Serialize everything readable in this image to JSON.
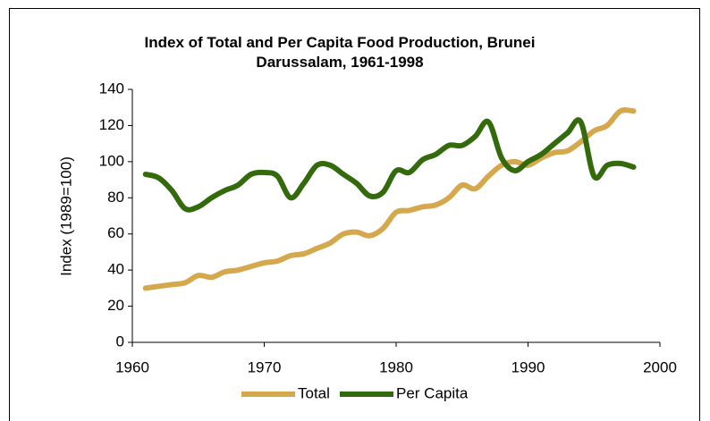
{
  "chart_data": {
    "type": "line",
    "title": "Index of Total and Per Capita Food Production, Brunei Darussalam, 1961-1998",
    "ylabel": "Index (1989=100)",
    "x": [
      1961,
      1962,
      1963,
      1964,
      1965,
      1966,
      1967,
      1968,
      1969,
      1970,
      1971,
      1972,
      1973,
      1974,
      1975,
      1976,
      1977,
      1978,
      1979,
      1980,
      1981,
      1982,
      1983,
      1984,
      1985,
      1986,
      1987,
      1988,
      1989,
      1990,
      1991,
      1992,
      1993,
      1994,
      1995,
      1996,
      1997,
      1998
    ],
    "series": [
      {
        "name": "Total",
        "color": "#d6a84e",
        "values": [
          30,
          31,
          32,
          33,
          37,
          36,
          39,
          40,
          42,
          44,
          45,
          48,
          49,
          52,
          55,
          60,
          61,
          59,
          63,
          72,
          73,
          75,
          76,
          80,
          87,
          85,
          92,
          98,
          100,
          98,
          102,
          105,
          106,
          111,
          117,
          120,
          128,
          128
        ]
      },
      {
        "name": "Per Capita",
        "color": "#336a0c",
        "values": [
          93,
          91,
          84,
          74,
          75,
          80,
          84,
          87,
          93,
          94,
          92,
          80,
          88,
          98,
          98,
          93,
          88,
          81,
          83,
          95,
          94,
          101,
          104,
          109,
          109,
          114,
          122,
          102,
          95,
          100,
          104,
          110,
          116,
          122,
          92,
          98,
          99,
          97
        ]
      }
    ],
    "xlim": [
      1960,
      2000
    ],
    "xticks": [
      1960,
      1970,
      1980,
      1990,
      2000
    ],
    "ylim": [
      0,
      140
    ],
    "yticks": [
      0,
      20,
      40,
      60,
      80,
      100,
      120,
      140
    ],
    "grid": false,
    "legend": "bottom"
  }
}
